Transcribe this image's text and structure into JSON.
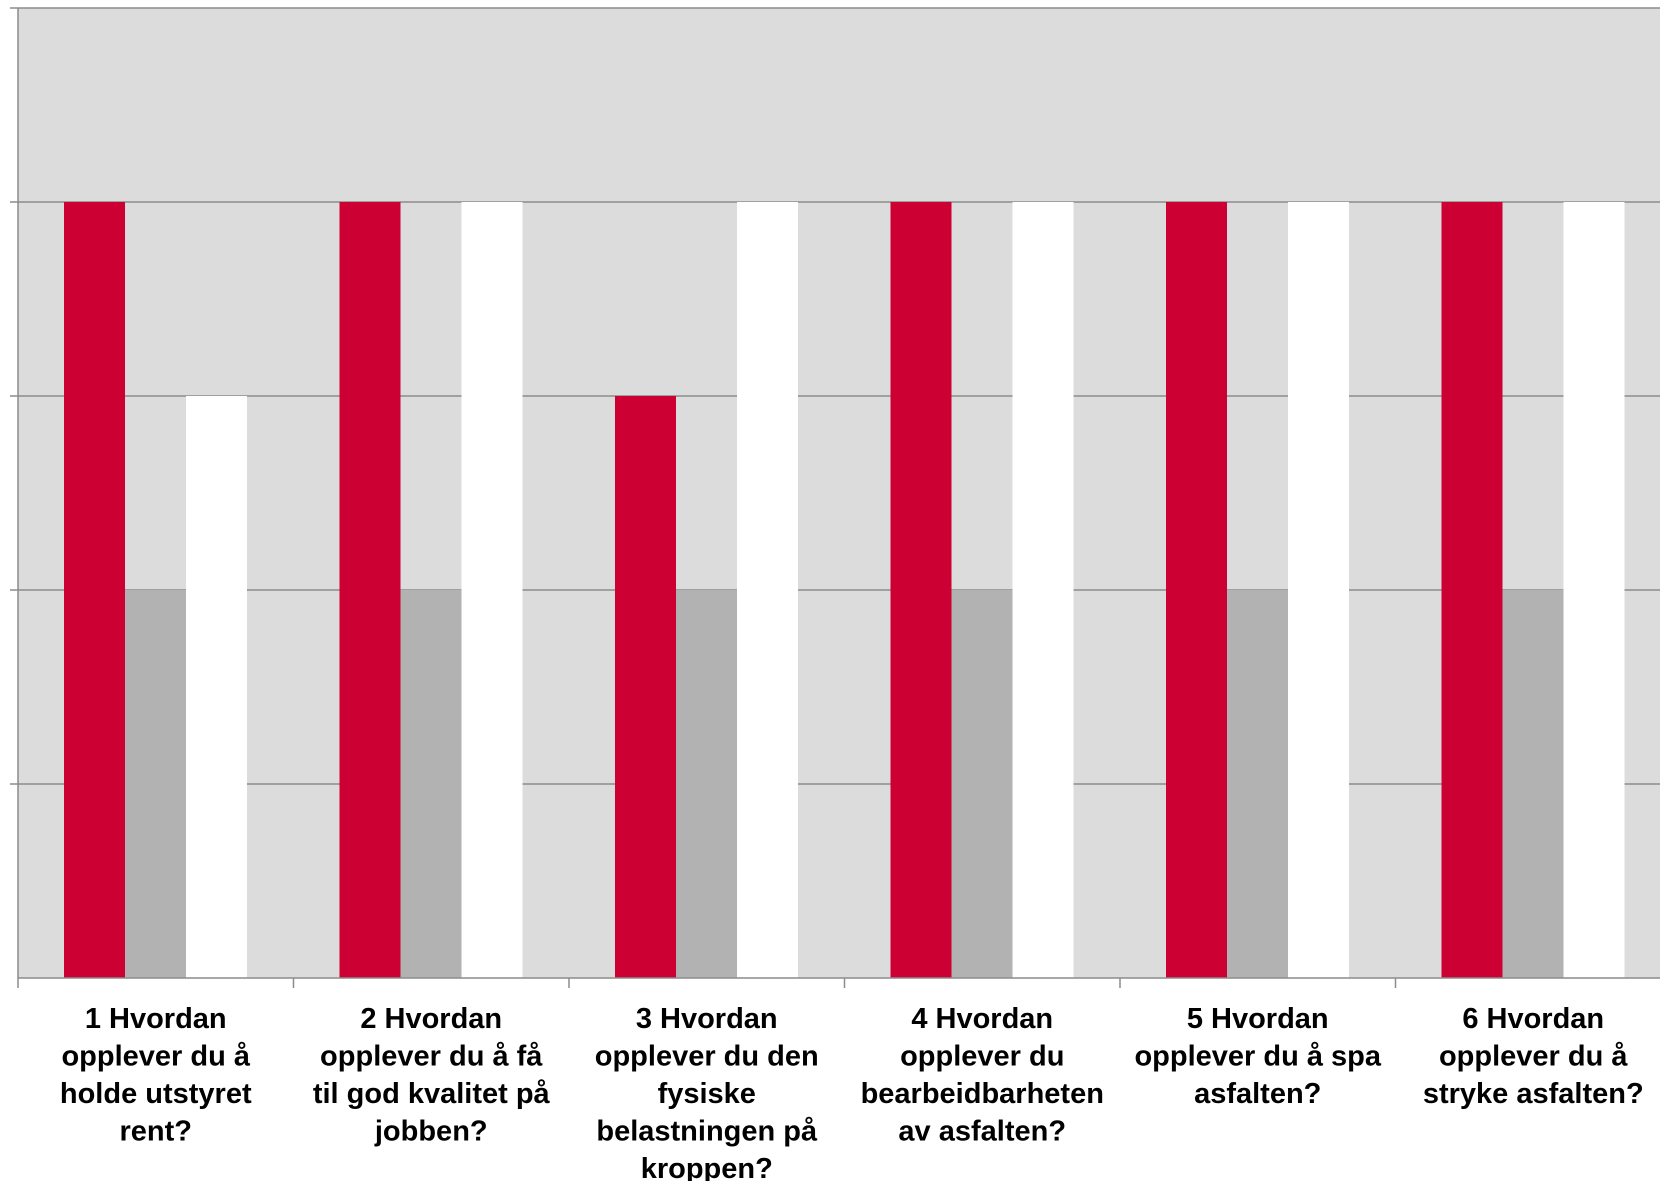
{
  "chart_data": {
    "type": "bar",
    "title": "",
    "xlabel": "",
    "ylabel": "",
    "ylim": [
      0,
      5
    ],
    "grid": true,
    "categories": [
      [
        "1 Hvordan",
        "opplever du å",
        "holde utstyret",
        "rent?"
      ],
      [
        "2 Hvordan",
        "opplever du å få",
        "til god kvalitet på",
        "jobben?"
      ],
      [
        "3 Hvordan",
        "opplever du den",
        "fysiske",
        "belastningen på",
        "kroppen?"
      ],
      [
        "4 Hvordan",
        "opplever du",
        "bearbeidbarheten",
        "av asfalten?"
      ],
      [
        "5 Hvordan",
        "opplever du å spa",
        "asfalten?"
      ],
      [
        "6 Hvordan",
        "opplever du å",
        "stryke asfalten?"
      ]
    ],
    "series": [
      {
        "values": [
          4,
          4,
          3,
          4,
          4,
          4
        ],
        "color": "#cc0033"
      },
      {
        "values": [
          2,
          2,
          2,
          2,
          2,
          2
        ],
        "color": "#b2b2b2"
      },
      {
        "values": [
          3,
          4,
          4,
          4,
          4,
          4
        ],
        "color": "#ffffff"
      }
    ],
    "plot_background": "#dcdcdc",
    "gridline_color": "#8c8c8c"
  }
}
